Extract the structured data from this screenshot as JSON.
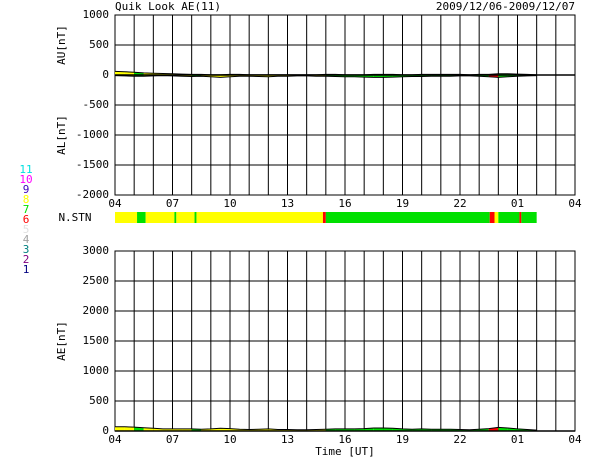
{
  "title": "Quik Look AE(11)",
  "date_range": "2009/12/06-2009/12/07",
  "n_stn": {
    "label": "N.STN",
    "legend": [
      {
        "count": 11,
        "color": "#00e0e0"
      },
      {
        "count": 10,
        "color": "#ff00ff"
      },
      {
        "count": 9,
        "color": "#4000c0"
      },
      {
        "count": 8,
        "color": "#ffff00"
      },
      {
        "count": 7,
        "color": "#00e000"
      },
      {
        "count": 6,
        "color": "#ff0000"
      },
      {
        "count": 5,
        "color": "#e0e0e0"
      },
      {
        "count": 4,
        "color": "#a0a0a0"
      },
      {
        "count": 3,
        "color": "#008080"
      },
      {
        "count": 2,
        "color": "#800080"
      },
      {
        "count": 1,
        "color": "#000080"
      }
    ],
    "segments": [
      {
        "start": 4,
        "end": 5.15,
        "count": 8
      },
      {
        "start": 5.15,
        "end": 5.6,
        "count": 7
      },
      {
        "start": 5.6,
        "end": 7.1,
        "count": 8
      },
      {
        "start": 7.1,
        "end": 7.2,
        "count": 7
      },
      {
        "start": 7.2,
        "end": 8.15,
        "count": 8
      },
      {
        "start": 8.15,
        "end": 8.25,
        "count": 7
      },
      {
        "start": 8.25,
        "end": 14.85,
        "count": 8
      },
      {
        "start": 14.85,
        "end": 15,
        "count": 6
      },
      {
        "start": 15,
        "end": 23.55,
        "count": 7
      },
      {
        "start": 23.55,
        "end": 23.8,
        "count": 6
      },
      {
        "start": 23.8,
        "end": 24,
        "count": 8
      },
      {
        "start": 24,
        "end": 25.1,
        "count": 7
      },
      {
        "start": 25.1,
        "end": 25.2,
        "count": 6
      },
      {
        "start": 25.2,
        "end": 26,
        "count": 7
      }
    ]
  },
  "chart_data": [
    {
      "type": "area",
      "ylabels": [
        "AU[nT]",
        "AL[nT]"
      ],
      "x": [
        4,
        4.5,
        5,
        5.5,
        6,
        6.5,
        7,
        7.5,
        8,
        8.5,
        9,
        9.5,
        10,
        10.5,
        11,
        11.5,
        12,
        12.5,
        13,
        13.5,
        14,
        14.5,
        15,
        15.5,
        16,
        16.5,
        17,
        17.5,
        18,
        18.5,
        19,
        19.5,
        20,
        20.5,
        21,
        21.5,
        22,
        22.5,
        23,
        23.5,
        24,
        24.5,
        25,
        25.5,
        26
      ],
      "series": [
        {
          "name": "AU",
          "color": "#000000",
          "values": [
            60,
            55,
            45,
            35,
            30,
            25,
            20,
            15,
            10,
            10,
            5,
            5,
            10,
            10,
            5,
            5,
            5,
            5,
            5,
            5,
            5,
            5,
            10,
            10,
            5,
            5,
            5,
            10,
            10,
            10,
            5,
            5,
            10,
            10,
            10,
            10,
            10,
            5,
            10,
            10,
            20,
            20,
            15,
            10,
            5
          ]
        },
        {
          "name": "AL",
          "color": "#000000",
          "values": [
            -10,
            -15,
            -20,
            -20,
            -15,
            -10,
            -15,
            -20,
            -25,
            -20,
            -30,
            -40,
            -30,
            -20,
            -20,
            -25,
            -30,
            -20,
            -20,
            -15,
            -15,
            -20,
            -20,
            -25,
            -30,
            -30,
            -35,
            -40,
            -40,
            -35,
            -30,
            -25,
            -25,
            -20,
            -20,
            -20,
            -15,
            -15,
            -20,
            -30,
            -40,
            -30,
            -20,
            -15,
            -10
          ]
        }
      ],
      "xlim": [
        4,
        28
      ],
      "xticks": [
        {
          "value": 4,
          "label": "04"
        },
        {
          "value": 7,
          "label": "07"
        },
        {
          "value": 10,
          "label": "10"
        },
        {
          "value": 13,
          "label": "13"
        },
        16,
        19,
        22,
        {
          "value": 25,
          "label": "01"
        },
        {
          "value": 28,
          "label": "04"
        }
      ],
      "x_minor_ticks": [
        4,
        5,
        6,
        7,
        8,
        9,
        10,
        11,
        12,
        13,
        14,
        15,
        16,
        17,
        18,
        19,
        20,
        21,
        22,
        23,
        24,
        25,
        26,
        27,
        28
      ],
      "ylim": [
        -2000,
        1000
      ],
      "yticks": [
        -2000,
        -1500,
        -1000,
        -500,
        0,
        500,
        1000
      ],
      "grid": true
    },
    {
      "type": "area",
      "ylabels": [
        "AE[nT]"
      ],
      "xlabel": "Time [UT]",
      "x": [
        4,
        4.5,
        5,
        5.5,
        6,
        6.5,
        7,
        7.5,
        8,
        8.5,
        9,
        9.5,
        10,
        10.5,
        11,
        11.5,
        12,
        12.5,
        13,
        13.5,
        14,
        14.5,
        15,
        15.5,
        16,
        16.5,
        17,
        17.5,
        18,
        18.5,
        19,
        19.5,
        20,
        20.5,
        21,
        21.5,
        22,
        22.5,
        23,
        23.5,
        24,
        24.5,
        25,
        25.5,
        26
      ],
      "series": [
        {
          "name": "AE",
          "color": "#000000",
          "values": [
            70,
            70,
            65,
            55,
            45,
            35,
            35,
            35,
            35,
            30,
            35,
            45,
            40,
            30,
            25,
            30,
            35,
            25,
            25,
            20,
            20,
            25,
            30,
            35,
            35,
            35,
            40,
            50,
            50,
            45,
            35,
            30,
            35,
            30,
            30,
            30,
            25,
            20,
            30,
            40,
            60,
            50,
            35,
            25,
            15
          ]
        }
      ],
      "xlim": [
        4,
        28
      ],
      "xticks": [
        {
          "value": 4,
          "label": "04"
        },
        {
          "value": 7,
          "label": "07"
        },
        {
          "value": 10,
          "label": "10"
        },
        {
          "value": 13,
          "label": "13"
        },
        16,
        19,
        22,
        {
          "value": 25,
          "label": "01"
        },
        {
          "value": 28,
          "label": "04"
        }
      ],
      "x_minor_ticks": [
        4,
        5,
        6,
        7,
        8,
        9,
        10,
        11,
        12,
        13,
        14,
        15,
        16,
        17,
        18,
        19,
        20,
        21,
        22,
        23,
        24,
        25,
        26,
        27,
        28
      ],
      "ylim": [
        0,
        3000
      ],
      "yticks": [
        0,
        500,
        1000,
        1500,
        2000,
        2500,
        3000
      ],
      "grid": true
    }
  ]
}
